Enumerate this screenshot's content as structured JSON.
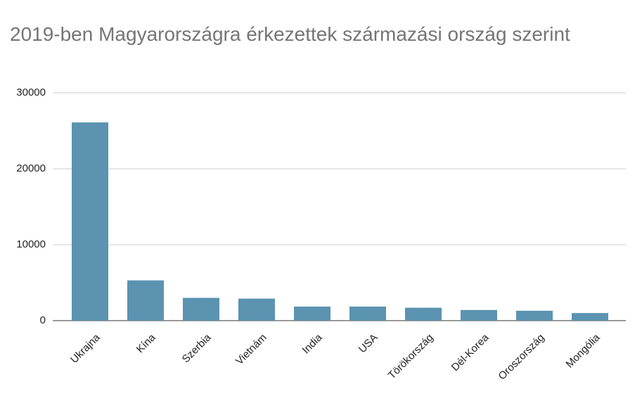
{
  "chart_data": {
    "type": "bar",
    "title": "2019-ben Magyarországra érkezettek származási ország szerint",
    "categories": [
      "Ukrajna",
      "Kína",
      "Szerbia",
      "Vietnám",
      "India",
      "USA",
      "Törökország",
      "Dél-Korea",
      "Oroszország",
      "Mongólia"
    ],
    "values": [
      26100,
      5300,
      3000,
      2900,
      1850,
      1850,
      1700,
      1400,
      1300,
      1000
    ],
    "color": "#5b93b1",
    "ylim": [
      0,
      30000
    ],
    "yticks": [
      0,
      10000,
      20000,
      30000
    ],
    "grid": true
  }
}
